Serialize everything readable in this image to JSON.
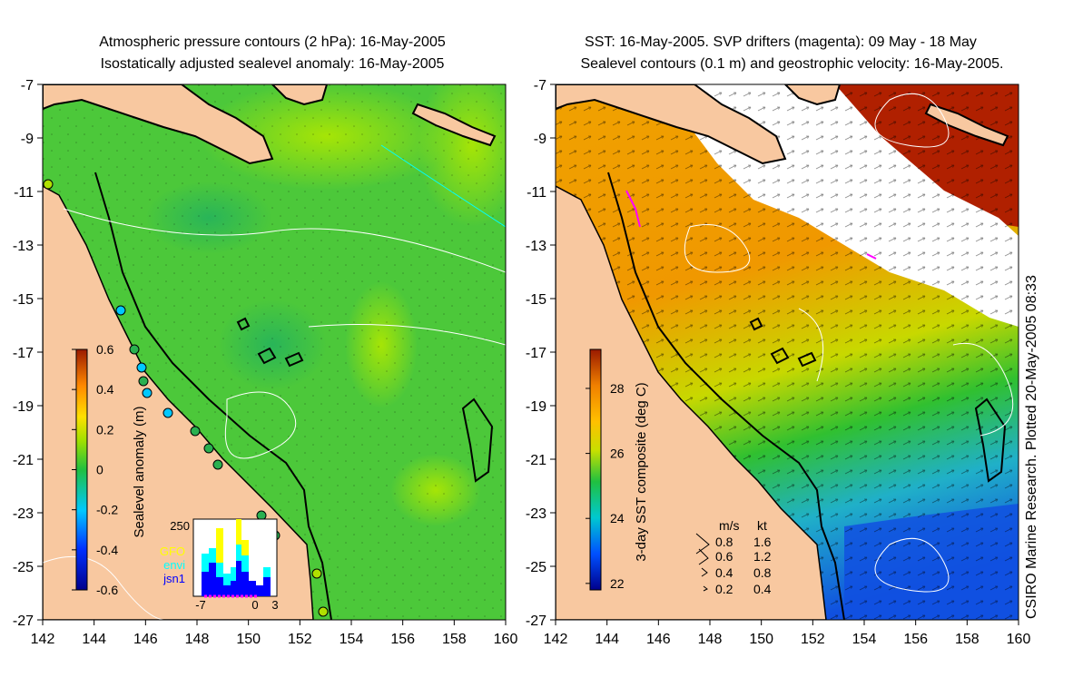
{
  "left_panel": {
    "title_line1": "Atmospheric pressure contours (2 hPa): 16-May-2005",
    "title_line2": "Isostatically adjusted sealevel anomaly: 16-May-2005",
    "x_ticks": [
      "142",
      "144",
      "146",
      "148",
      "150",
      "152",
      "154",
      "156",
      "158",
      "160"
    ],
    "y_ticks": [
      "-7",
      "-9",
      "-11",
      "-13",
      "-15",
      "-17",
      "-19",
      "-21",
      "-23",
      "-25",
      "-27"
    ],
    "colorbar": {
      "label": "Sealevel anomaly (m)",
      "ticks": [
        "0.6",
        "0.4",
        "0.2",
        "0",
        "-0.2",
        "-0.4",
        "-0.6"
      ],
      "range": [
        -0.6,
        0.6
      ]
    },
    "histogram": {
      "ymax_label": "250",
      "x_labels": [
        "-7",
        "0",
        "3"
      ],
      "legend": [
        {
          "label": "GFO",
          "color": "#ffff00"
        },
        {
          "label": "envi",
          "color": "#00ffff"
        },
        {
          "label": "jsn1",
          "color": "#0000ff"
        }
      ]
    }
  },
  "right_panel": {
    "title_line1": "SST: 16-May-2005. SVP drifters (magenta): 09 May - 18 May",
    "title_line2": "Sealevel contours (0.1 m) and geostrophic velocity: 16-May-2005.",
    "x_ticks": [
      "142",
      "144",
      "146",
      "148",
      "150",
      "152",
      "154",
      "156",
      "158",
      "160"
    ],
    "y_ticks": [
      "-7",
      "-9",
      "-11",
      "-13",
      "-15",
      "-17",
      "-19",
      "-21",
      "-23",
      "-25",
      "-27"
    ],
    "colorbar": {
      "label": "3-day SST composite (deg C)",
      "ticks": [
        "28",
        "26",
        "24",
        "22"
      ],
      "range": [
        21.8,
        29.2
      ]
    },
    "velocity_legend": {
      "header_ms": "m/s",
      "header_kt": "kt",
      "rows": [
        {
          "ms": "0.8",
          "kt": "1.6"
        },
        {
          "ms": "0.6",
          "kt": "1.2"
        },
        {
          "ms": "0.4",
          "kt": "0.8"
        },
        {
          "ms": "0.2",
          "kt": "0.4"
        }
      ]
    }
  },
  "side_label": "CSIRO Marine Research. Plotted 20-May-2005 08:33",
  "colors": {
    "land": "#f8c8a0",
    "sla_mid": "#33cc33",
    "sst_warm": "#f0a000",
    "cloud": "#ffffff",
    "drifter": "#ff00ff"
  }
}
